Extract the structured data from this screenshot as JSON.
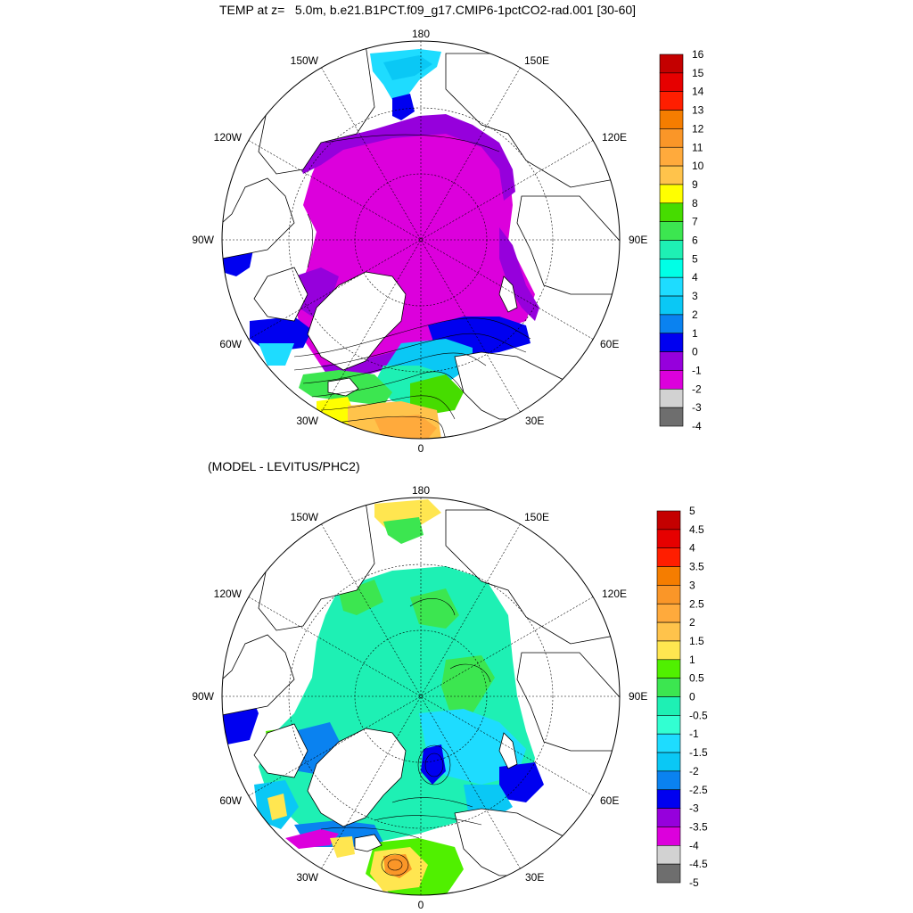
{
  "top_panel": {
    "title": "TEMP at z=   5.0m, b.e21.B1PCT.f09_g17.CMIP6-1pctCO2-rad.001 [30-60]",
    "lon_labels": {
      "n": "180",
      "ne1": "150E",
      "e1": "120E",
      "e": "90E",
      "se1": "60E",
      "se2": "30E",
      "s": "0",
      "sw2": "30W",
      "sw1": "60W",
      "w": "90W",
      "nw1": "120W",
      "nw2": "150W"
    },
    "colorbar": {
      "labels": [
        "16",
        "15",
        "14",
        "13",
        "12",
        "11",
        "10",
        "9",
        "8",
        "7",
        "6",
        "5",
        "4",
        "3",
        "2",
        "1",
        "0",
        "-1",
        "-2",
        "-3",
        "-4"
      ],
      "colors": [
        "#c40000",
        "#e60000",
        "#ff1e00",
        "#f57d00",
        "#fa9628",
        "#ffaa3c",
        "#ffc34b",
        "#ffff00",
        "#46dc00",
        "#3ce650",
        "#1ef0b4",
        "#00ffe6",
        "#1edcff",
        "#0ac8f5",
        "#0a82f0",
        "#0000f0",
        "#9600dc",
        "#dc00dc",
        "#d2d2d2",
        "#6e6e6e"
      ]
    }
  },
  "bottom_panel": {
    "title": "(MODEL - LEVITUS/PHC2)",
    "lon_labels": {
      "n": "180",
      "ne1": "150E",
      "e1": "120E",
      "e": "90E",
      "se1": "60E",
      "se2": "30E",
      "s": "0",
      "sw2": "30W",
      "sw1": "60W",
      "w": "90W",
      "nw1": "120W",
      "nw2": "150W"
    },
    "colorbar": {
      "labels": [
        "5",
        "4.5",
        "4",
        "3.5",
        "3",
        "2.5",
        "2",
        "1.5",
        "1",
        "0.5",
        "0",
        "-0.5",
        "-1",
        "-1.5",
        "-2",
        "-2.5",
        "-3",
        "-3.5",
        "-4",
        "-4.5",
        "-5"
      ],
      "colors": [
        "#c40000",
        "#e60000",
        "#ff1e00",
        "#f57d00",
        "#fa9628",
        "#ffaa3c",
        "#ffc34b",
        "#ffe650",
        "#50f000",
        "#3ce650",
        "#1ef0b4",
        "#32ffd2",
        "#1edcff",
        "#0ac8f5",
        "#0a82f0",
        "#0000f0",
        "#9600dc",
        "#dc00dc",
        "#d2d2d2",
        "#6e6e6e"
      ]
    }
  },
  "colors": {
    "land": "#ffffff",
    "coast": "#000000",
    "grid": "#000000"
  }
}
